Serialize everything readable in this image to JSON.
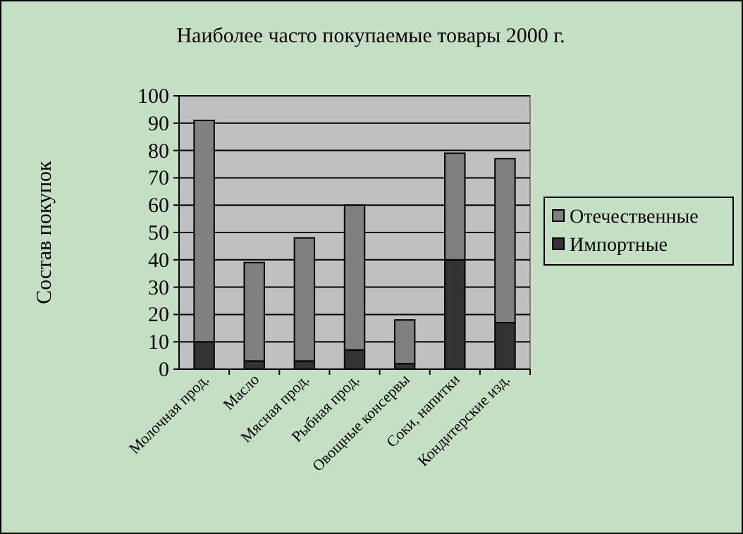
{
  "chart_data": {
    "type": "bar",
    "title": "Наиболее часто покупаемые товары 2000 г.",
    "ylabel": "Состав покупок",
    "categories": [
      "Молочная прод.",
      "Масло",
      "Мясная прод.",
      "Рыбная прод.",
      "Овощные консервы",
      "Соки, напитки",
      "Кондитерские изд."
    ],
    "series": [
      {
        "name": "Импортные",
        "color": "#333333",
        "values": [
          10,
          3,
          3,
          7,
          2,
          40,
          17
        ]
      },
      {
        "name": "Отечественные",
        "color": "#808080",
        "values": [
          81,
          36,
          45,
          53,
          16,
          39,
          60
        ]
      }
    ],
    "stacked": true,
    "ylim": [
      0,
      100
    ],
    "yticks": [
      0,
      10,
      20,
      30,
      40,
      50,
      60,
      70,
      80,
      90,
      100
    ],
    "grid": "y",
    "legend": "right"
  }
}
